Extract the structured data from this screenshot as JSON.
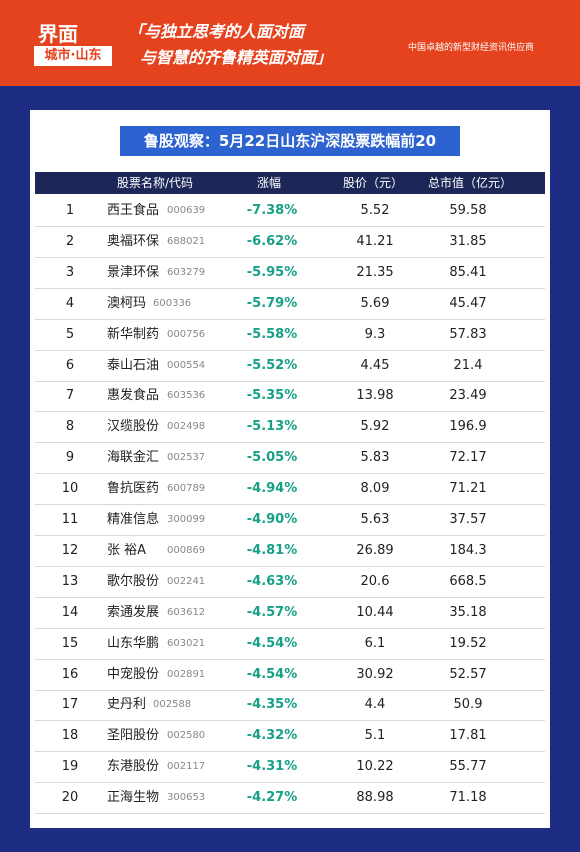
{
  "header": {
    "logo": "界面",
    "logo_sub": "城市·山东",
    "slogan": [
      "「与独立思考的人面对面",
      "与智慧的齐鲁精英面对面」"
    ],
    "tagline": "中国卓越的新型财经资讯供应商"
  },
  "table": {
    "title": "鲁股观察：5月22日山东沪深股票跌幅前20",
    "columns": [
      "股票名称/代码",
      "涨幅",
      "股价（元）",
      "总市值（亿元）"
    ],
    "rows": [
      [
        "1",
        "西王食品",
        "000639",
        "-7.38%",
        "5.52",
        "59.58"
      ],
      [
        "2",
        "奥福环保",
        "688021",
        "-6.62%",
        "41.21",
        "31.85"
      ],
      [
        "3",
        "景津环保",
        "603279",
        "-5.95%",
        "21.35",
        "85.41"
      ],
      [
        "4",
        "澳柯玛",
        "600336",
        "-5.79%",
        "5.69",
        "45.47"
      ],
      [
        "5",
        "新华制药",
        "000756",
        "-5.58%",
        "9.3",
        "57.83"
      ],
      [
        "6",
        "泰山石油",
        "000554",
        "-5.52%",
        "4.45",
        "21.4"
      ],
      [
        "7",
        "惠发食品",
        "603536",
        "-5.35%",
        "13.98",
        "23.49"
      ],
      [
        "8",
        "汉缆股份",
        "002498",
        "-5.13%",
        "5.92",
        "196.9"
      ],
      [
        "9",
        "海联金汇",
        "002537",
        "-5.05%",
        "5.83",
        "72.17"
      ],
      [
        "10",
        "鲁抗医药",
        "600789",
        "-4.94%",
        "8.09",
        "71.21"
      ],
      [
        "11",
        "精准信息",
        "300099",
        "-4.90%",
        "5.63",
        "37.57"
      ],
      [
        "12",
        "张 裕A",
        "000869",
        "-4.81%",
        "26.89",
        "184.3"
      ],
      [
        "13",
        "歌尔股份",
        "002241",
        "-4.63%",
        "20.6",
        "668.5"
      ],
      [
        "14",
        "索通发展",
        "603612",
        "-4.57%",
        "10.44",
        "35.18"
      ],
      [
        "15",
        "山东华鹏",
        "603021",
        "-4.54%",
        "6.1",
        "19.52"
      ],
      [
        "16",
        "中宠股份",
        "002891",
        "-4.54%",
        "30.92",
        "52.57"
      ],
      [
        "17",
        "史丹利",
        "002588",
        "-4.35%",
        "4.4",
        "50.9"
      ],
      [
        "18",
        "圣阳股份",
        "002580",
        "-4.32%",
        "5.1",
        "17.81"
      ],
      [
        "19",
        "东港股份",
        "002117",
        "-4.31%",
        "10.22",
        "55.77"
      ],
      [
        "20",
        "正海生物",
        "300653",
        "-4.27%",
        "88.98",
        "71.18"
      ]
    ]
  }
}
